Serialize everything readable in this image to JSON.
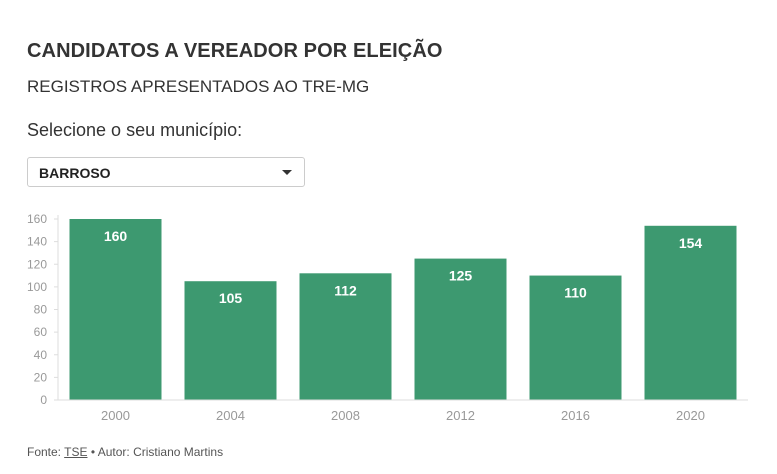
{
  "header": {
    "title": "CANDIDATOS A VEREADOR POR ELEIÇÃO",
    "subtitle": "REGISTROS APRESENTADOS AO TRE-MG"
  },
  "selector": {
    "label": "Selecione o seu município:",
    "value": "BARROSO"
  },
  "footer": {
    "source_prefix": "Fonte:",
    "source_link": "TSE",
    "author": "• Autor: Cristiano Martins"
  },
  "colors": {
    "bar": "#3d9970",
    "bar_label": "#ffffff",
    "axis_text": "#999999"
  },
  "chart_data": {
    "type": "bar",
    "categories": [
      "2000",
      "2004",
      "2008",
      "2012",
      "2016",
      "2020"
    ],
    "values": [
      160,
      105,
      112,
      125,
      110,
      154
    ],
    "ylim": [
      0,
      160
    ],
    "yticks": [
      0,
      20,
      40,
      60,
      80,
      100,
      120,
      140,
      160
    ],
    "title": "",
    "xlabel": "",
    "ylabel": "",
    "data_labels": true
  }
}
